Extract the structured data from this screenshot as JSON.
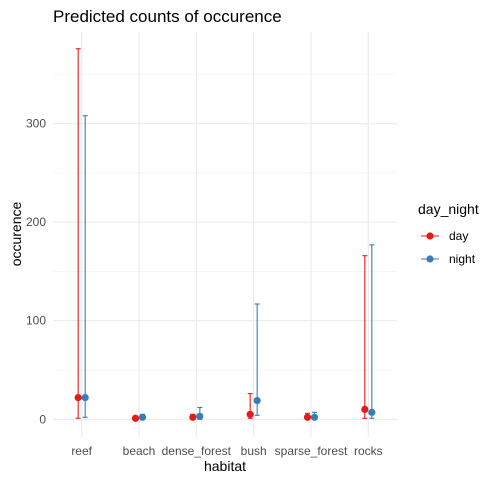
{
  "chart_data": {
    "type": "scatter",
    "title": "Predicted counts of occurence",
    "xlabel": "habitat",
    "ylabel": "occurence",
    "categories": [
      "reef",
      "beach",
      "dense_forest",
      "bush",
      "sparse_forest",
      "rocks"
    ],
    "y_ticks": [
      0,
      100,
      200,
      300
    ],
    "ylim": [
      -18,
      393
    ],
    "grid": true,
    "legend": {
      "title": "day_night",
      "position": "right"
    },
    "series": [
      {
        "name": "day",
        "color": "#E41A1C",
        "values": [
          22,
          1,
          2,
          5,
          2,
          10
        ],
        "lower": [
          1,
          0,
          0,
          1,
          0,
          1
        ],
        "upper": [
          376,
          3,
          5,
          26,
          6,
          166
        ]
      },
      {
        "name": "night",
        "color": "#377EB8",
        "values": [
          22,
          2,
          3,
          19,
          2,
          7
        ],
        "lower": [
          2,
          0,
          0,
          4,
          0,
          1
        ],
        "upper": [
          308,
          5,
          12,
          117,
          7,
          177
        ]
      }
    ]
  }
}
